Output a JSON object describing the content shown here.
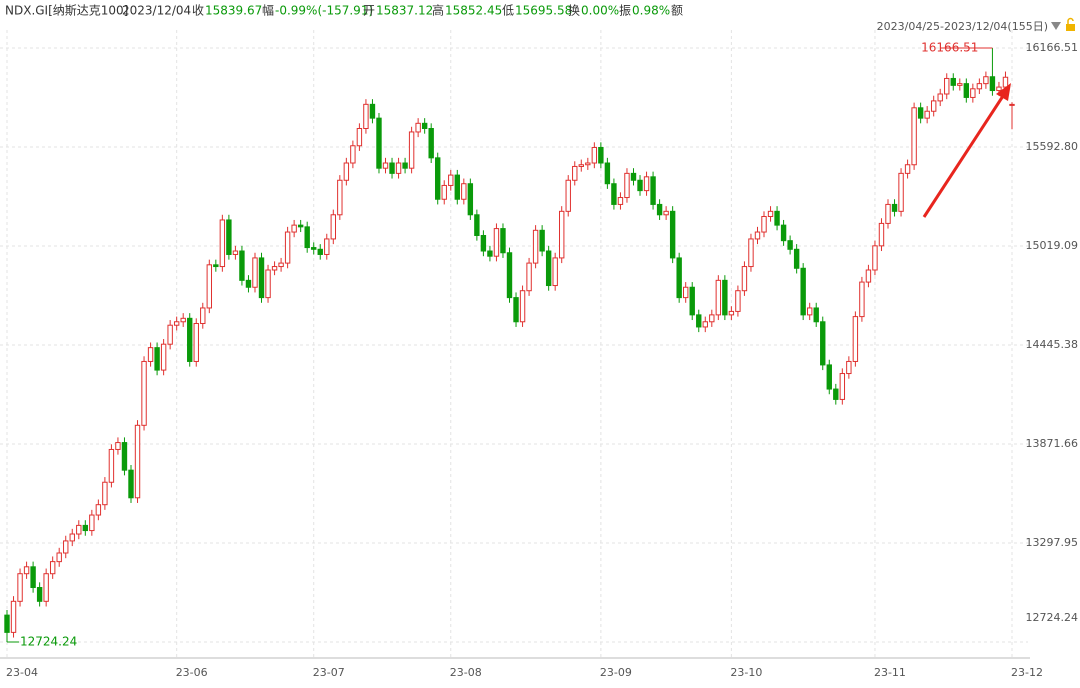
{
  "header": {
    "symbol": "NDX.GI[纳斯达克100]",
    "date": "2023/12/04",
    "fields": [
      {
        "label": "收",
        "value": "15839.67"
      },
      {
        "label": "幅",
        "value": "-0.99%(-157.91)"
      },
      {
        "label": "开",
        "value": "15837.12"
      },
      {
        "label": "高",
        "value": "15852.45"
      },
      {
        "label": "低",
        "value": "15695.58"
      },
      {
        "label": "换",
        "value": "0.00%"
      },
      {
        "label": "振",
        "value": "0.98%"
      },
      {
        "label": "额"
      }
    ],
    "range": "2023/04/25-2023/12/04(155日)"
  },
  "chart_data": {
    "type": "candlestick",
    "up_color": "#e0312f",
    "down_color": "#0a9a0a",
    "ylim": [
      12724.24,
      16166.51
    ],
    "yticks": [
      12724.24,
      13297.95,
      13871.66,
      14445.38,
      15019.09,
      {
        "value": 15592.8,
        "label": "15592.80"
      },
      16166.51
    ],
    "xticks": [
      {
        "value": 0,
        "label": "23-04"
      },
      {
        "value": 26,
        "label": "23-06"
      },
      {
        "value": 47,
        "label": "23-07"
      },
      {
        "value": 68,
        "label": "23-08"
      },
      {
        "value": 91,
        "label": "23-09"
      },
      {
        "value": 111,
        "label": "23-10"
      },
      {
        "value": 133,
        "label": "23-11"
      },
      {
        "value": 154,
        "label": "23-12"
      }
    ],
    "grid": true,
    "max_index": 151,
    "min_index": 0,
    "open": [
      12880,
      12780,
      12960,
      13120,
      13160,
      13040,
      12960,
      13120,
      13190,
      13240,
      13310,
      13350,
      13400,
      13370,
      13460,
      13520,
      13650,
      13840,
      13880,
      13720,
      13560,
      13980,
      14350,
      14430,
      14300,
      14450,
      14560,
      14580,
      14600,
      14350,
      14570,
      14660,
      14910,
      14900,
      15170,
      14970,
      14990,
      14820,
      14780,
      14950,
      14720,
      14880,
      14900,
      14920,
      15100,
      15140,
      15130,
      15010,
      15000,
      14970,
      15060,
      15200,
      15400,
      15500,
      15600,
      15700,
      15840,
      15760,
      15470,
      15500,
      15440,
      15500,
      15470,
      15680,
      15730,
      15700,
      15530,
      15290,
      15370,
      15430,
      15290,
      15380,
      15200,
      15080,
      14990,
      14960,
      15120,
      14980,
      14720,
      14580,
      14760,
      14920,
      15110,
      14990,
      14790,
      14950,
      15220,
      15400,
      15480,
      15490,
      15500,
      15590,
      15500,
      15380,
      15260,
      15300,
      15440,
      15400,
      15340,
      15420,
      15260,
      15200,
      15220,
      14950,
      14720,
      14780,
      14620,
      14550,
      14580,
      14620,
      14820,
      14620,
      14640,
      14760,
      14900,
      15060,
      15100,
      15190,
      15220,
      15140,
      15050,
      15000,
      14890,
      14620,
      14660,
      14580,
      14330,
      14190,
      14130,
      14280,
      14350,
      14610,
      14810,
      14880,
      15020,
      15150,
      15260,
      15220,
      15440,
      15490,
      15820,
      15760,
      15800,
      15860,
      15900,
      15990,
      15950,
      15960,
      15880,
      15930,
      15960,
      16000,
      15920,
      15940,
      15837.12
    ],
    "high": [
      12910,
      12990,
      13150,
      13190,
      13190,
      13070,
      13150,
      13220,
      13270,
      13340,
      13380,
      13430,
      13430,
      13490,
      13550,
      13680,
      13870,
      13910,
      13910,
      13750,
      14010,
      14380,
      14460,
      14460,
      14480,
      14590,
      14610,
      14630,
      14630,
      14600,
      14690,
      14940,
      14940,
      15200,
      15200,
      15020,
      15020,
      14850,
      14980,
      14980,
      14910,
      14930,
      14950,
      15130,
      15170,
      15170,
      15160,
      15040,
      15030,
      15090,
      15230,
      15430,
      15530,
      15630,
      15730,
      15870,
      15870,
      15790,
      15530,
      15530,
      15530,
      15530,
      15710,
      15760,
      15760,
      15730,
      15560,
      15400,
      15460,
      15460,
      15410,
      15410,
      15230,
      15110,
      15020,
      15150,
      15150,
      15010,
      14750,
      14790,
      14950,
      15140,
      15140,
      15020,
      14980,
      15250,
      15430,
      15510,
      15520,
      15530,
      15620,
      15620,
      15530,
      15410,
      15330,
      15470,
      15470,
      15430,
      15450,
      15450,
      15290,
      15250,
      15250,
      14980,
      14810,
      14810,
      14650,
      14610,
      14650,
      14850,
      14850,
      14670,
      14790,
      14930,
      15090,
      15130,
      15220,
      15250,
      15250,
      15170,
      15080,
      15030,
      14920,
      14690,
      14690,
      14610,
      14360,
      14220,
      14310,
      14380,
      14640,
      14840,
      14910,
      15050,
      15180,
      15290,
      15290,
      15470,
      15520,
      15850,
      15850,
      15830,
      15890,
      15930,
      16020,
      16020,
      15990,
      15990,
      15960,
      15990,
      16030,
      16166.51,
      15970,
      16030,
      15852.45
    ],
    "low": [
      12724.24,
      12750,
      12930,
      13090,
      13010,
      12930,
      12930,
      13090,
      13160,
      13210,
      13280,
      13320,
      13340,
      13340,
      13430,
      13490,
      13620,
      13810,
      13690,
      13530,
      13530,
      13950,
      14320,
      14270,
      14270,
      14420,
      14530,
      14550,
      14320,
      14320,
      14540,
      14630,
      14870,
      14870,
      14940,
      14940,
      14790,
      14750,
      14750,
      14690,
      14690,
      14850,
      14870,
      14890,
      15070,
      15100,
      14980,
      14970,
      14940,
      14940,
      15030,
      15170,
      15370,
      15470,
      15570,
      15670,
      15730,
      15440,
      15440,
      15410,
      15410,
      15440,
      15440,
      15650,
      15670,
      15500,
      15260,
      15260,
      15340,
      15260,
      15260,
      15170,
      15050,
      14960,
      14930,
      14930,
      14950,
      14690,
      14550,
      14550,
      14730,
      14890,
      14960,
      14760,
      14760,
      14920,
      15190,
      15370,
      15450,
      15460,
      15470,
      15470,
      15350,
      15230,
      15230,
      15270,
      15370,
      15310,
      15310,
      15230,
      15170,
      15170,
      14920,
      14690,
      14690,
      14590,
      14520,
      14520,
      14550,
      14590,
      14590,
      14590,
      14610,
      14730,
      14870,
      15030,
      15070,
      15160,
      15110,
      15020,
      14970,
      14860,
      14590,
      14590,
      14550,
      14300,
      14160,
      14100,
      14100,
      14250,
      14320,
      14580,
      14780,
      14850,
      14990,
      15120,
      15190,
      15190,
      15410,
      15460,
      15730,
      15730,
      15770,
      15830,
      15870,
      15920,
      15920,
      15850,
      15850,
      15900,
      15930,
      15890,
      15890,
      15910,
      15695.58
    ],
    "close": [
      12780,
      12960,
      13120,
      13160,
      13040,
      12960,
      13120,
      13190,
      13240,
      13310,
      13350,
      13400,
      13370,
      13460,
      13520,
      13650,
      13840,
      13880,
      13720,
      13560,
      13980,
      14350,
      14430,
      14300,
      14450,
      14560,
      14580,
      14600,
      14350,
      14570,
      14660,
      14910,
      14900,
      15170,
      14970,
      14990,
      14820,
      14780,
      14950,
      14720,
      14880,
      14900,
      14920,
      15100,
      15140,
      15130,
      15010,
      15000,
      14970,
      15060,
      15200,
      15400,
      15500,
      15600,
      15700,
      15840,
      15760,
      15470,
      15500,
      15440,
      15500,
      15470,
      15680,
      15730,
      15700,
      15530,
      15290,
      15370,
      15430,
      15290,
      15380,
      15200,
      15080,
      14990,
      14960,
      15120,
      14980,
      14720,
      14580,
      14760,
      14920,
      15110,
      14990,
      14790,
      14950,
      15220,
      15400,
      15480,
      15490,
      15500,
      15590,
      15500,
      15380,
      15260,
      15300,
      15440,
      15400,
      15340,
      15420,
      15260,
      15200,
      15220,
      14950,
      14720,
      14780,
      14620,
      14550,
      14580,
      14620,
      14820,
      14620,
      14640,
      14760,
      14900,
      15060,
      15100,
      15190,
      15220,
      15140,
      15050,
      15000,
      14890,
      14620,
      14660,
      14580,
      14330,
      14190,
      14130,
      14280,
      14350,
      14610,
      14810,
      14880,
      15020,
      15150,
      15260,
      15220,
      15440,
      15490,
      15820,
      15760,
      15800,
      15860,
      15900,
      15990,
      15950,
      15960,
      15880,
      15930,
      15960,
      16000,
      15920,
      15940,
      15997,
      15839.67
    ]
  }
}
